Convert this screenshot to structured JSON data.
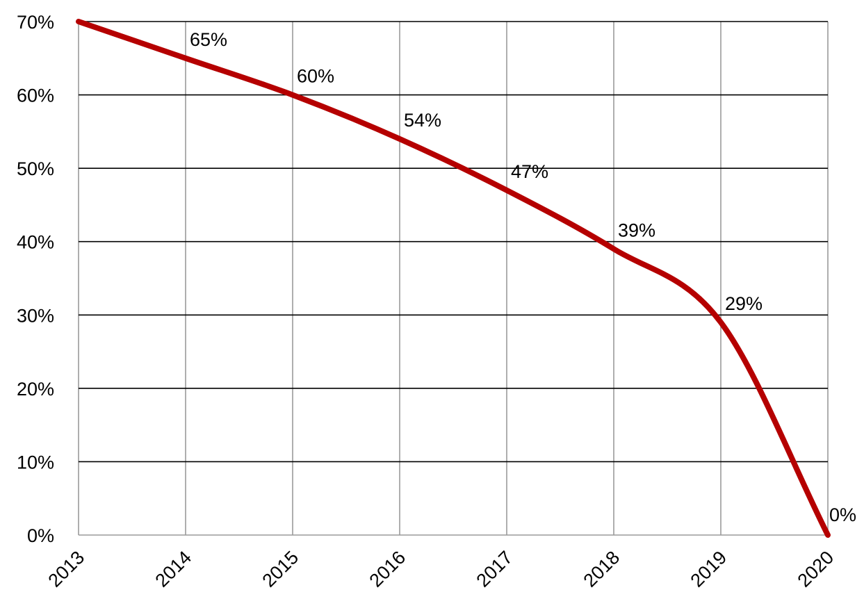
{
  "chart_data": {
    "type": "line",
    "x": [
      "2013",
      "2014",
      "2015",
      "2016",
      "2017",
      "2018",
      "2019",
      "2020"
    ],
    "series": [
      {
        "values": [
          70,
          65,
          60,
          54,
          47,
          39,
          29,
          0
        ],
        "data_labels": [
          "",
          "65%",
          "60%",
          "54%",
          "47%",
          "39%",
          "29%",
          "0%"
        ],
        "color": "#b50000",
        "smooth": true
      }
    ],
    "ylim": [
      0,
      70
    ],
    "yticks": [
      0,
      10,
      20,
      30,
      40,
      50,
      60,
      70
    ],
    "ytick_labels": [
      "0%",
      "10%",
      "20%",
      "30%",
      "40%",
      "50%",
      "60%",
      "70%"
    ],
    "xtick_rotation": -45,
    "grid": true,
    "legend": "none"
  }
}
